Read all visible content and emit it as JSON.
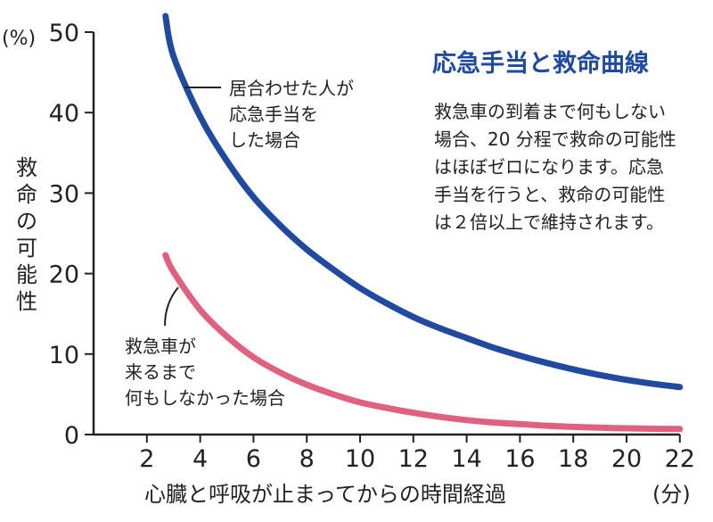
{
  "chart_data": {
    "type": "line",
    "title": "応急手当と救命曲線",
    "description_lines": [
      "救急車の到着まで何もしない",
      "場合、20 分程で救命の可能性",
      "はほぼゼロになります。応急",
      "手当を行うと、救命の可能性",
      "は２倍以上で維持されます。"
    ],
    "ylabel": "救命の可能性",
    "yunit": "(%)",
    "xlabel": "心臓と呼吸が止まってからの時間経過",
    "xunit": "(分)",
    "xlim": [
      0,
      22
    ],
    "ylim": [
      0,
      50
    ],
    "xticks": [
      2,
      4,
      6,
      8,
      10,
      12,
      14,
      16,
      18,
      20,
      22
    ],
    "yticks": [
      0,
      10,
      20,
      30,
      40,
      50
    ],
    "grid": false,
    "series": [
      {
        "name_lines": [
          "居合わせた人が",
          "応急手当を",
          "した場合"
        ],
        "color": "#1f4aa0",
        "x": [
          2.7,
          3,
          4,
          5,
          6,
          7,
          8,
          9,
          10,
          11,
          12,
          13,
          14,
          15,
          16,
          17,
          18,
          19,
          20,
          21,
          22
        ],
        "y": [
          52,
          47,
          39.5,
          34,
          29.5,
          26,
          23,
          20.5,
          18.2,
          16.3,
          14.6,
          13.2,
          12,
          10.8,
          9.8,
          8.9,
          8.1,
          7.4,
          6.8,
          6.3,
          5.9
        ]
      },
      {
        "name_lines": [
          "救急車が",
          "来るまで",
          "何もしなかった場合"
        ],
        "color": "#e0607f",
        "x": [
          2.7,
          3,
          4,
          5,
          6,
          7,
          8,
          9,
          10,
          11,
          12,
          13,
          14,
          15,
          16,
          17,
          18,
          19,
          20,
          21,
          22
        ],
        "y": [
          22.3,
          20.2,
          15.5,
          12.2,
          9.6,
          7.7,
          6.2,
          5,
          4,
          3.3,
          2.7,
          2.2,
          1.8,
          1.5,
          1.3,
          1.1,
          0.95,
          0.85,
          0.78,
          0.72,
          0.7
        ]
      }
    ]
  }
}
